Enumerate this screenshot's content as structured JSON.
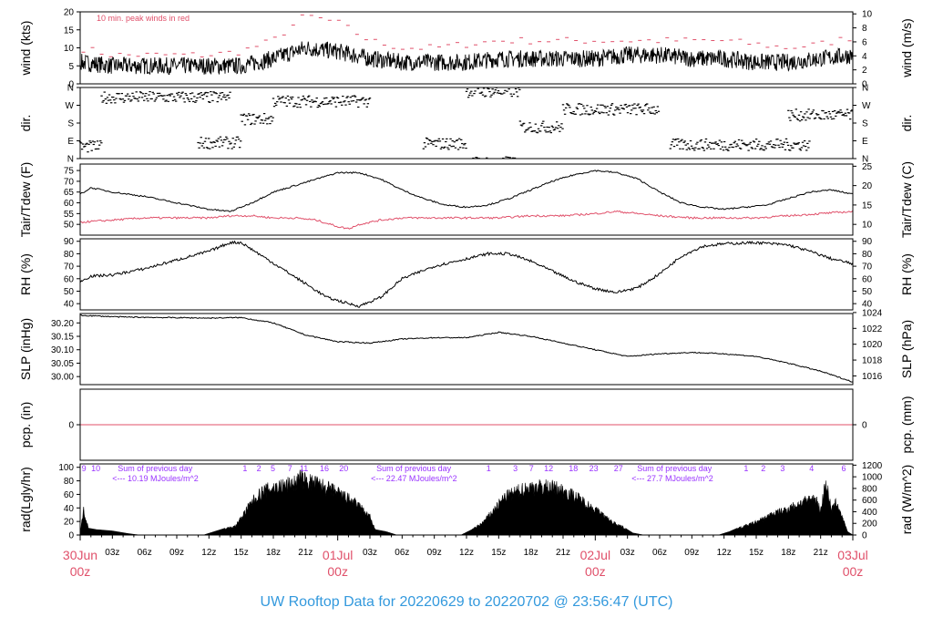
{
  "footer": "UW Rooftop Data for 20220629  to  20220702 @ 23:56:47  (UTC)",
  "colors": {
    "line": "#000000",
    "accent": "#e0506a",
    "purple": "#9933ff",
    "footer": "#3399dd"
  },
  "chart_data": [
    {
      "type": "line",
      "ylabel": "wind (kts)",
      "ylabel_right": "wind (m/s)",
      "ylim": [
        0,
        20
      ],
      "yticks": [
        0,
        5,
        10,
        15,
        20
      ],
      "yticks_right": [
        0,
        2,
        4,
        6,
        8,
        10
      ],
      "ylim_right": [
        0,
        10.29
      ],
      "annotation": "10 min. peak winds in red",
      "series": [
        {
          "kind": "mean_wind",
          "x_hours": [
            0,
            3,
            6,
            9,
            12,
            15,
            18,
            21,
            24,
            27,
            30,
            33,
            36,
            39,
            42,
            45,
            48,
            51,
            54,
            57,
            60,
            63,
            66,
            69,
            72
          ],
          "values": [
            6,
            5,
            5,
            5,
            5,
            5,
            7,
            10,
            9,
            7,
            6,
            6,
            6,
            7,
            7,
            7,
            7,
            8,
            8,
            7,
            7,
            6,
            6,
            7,
            8
          ]
        },
        {
          "kind": "peak_wind",
          "x_hours": [
            0,
            3,
            6,
            9,
            12,
            15,
            18,
            21,
            24,
            27,
            30,
            33,
            36,
            39,
            42,
            45,
            48,
            51,
            54,
            57,
            60,
            63,
            66,
            69,
            72
          ],
          "values": [
            10,
            8,
            8,
            8,
            8,
            9,
            12,
            19,
            17,
            12,
            10,
            10,
            11,
            12,
            12,
            12,
            12,
            12,
            12,
            12,
            12,
            11,
            10,
            11,
            13
          ]
        }
      ]
    },
    {
      "type": "scatter",
      "ylabel": "dir.",
      "ylabel_right": "dir.",
      "yticks": [
        "N",
        "E",
        "S",
        "W",
        "N"
      ],
      "ylim": [
        0,
        360
      ],
      "segments": [
        {
          "x_hours": [
            0,
            2
          ],
          "dir_deg": 60
        },
        {
          "x_hours": [
            2,
            14
          ],
          "dir_deg": 310
        },
        {
          "x_hours": [
            11,
            15
          ],
          "dir_deg": 80
        },
        {
          "x_hours": [
            15,
            18
          ],
          "dir_deg": 200
        },
        {
          "x_hours": [
            18,
            27
          ],
          "dir_deg": 290
        },
        {
          "x_hours": [
            32,
            36
          ],
          "dir_deg": 75
        },
        {
          "x_hours": [
            36,
            41
          ],
          "dir_deg": 340
        },
        {
          "x_hours": [
            41,
            45
          ],
          "dir_deg": 160
        },
        {
          "x_hours": [
            45,
            54
          ],
          "dir_deg": 250
        },
        {
          "x_hours": [
            55,
            68
          ],
          "dir_deg": 70
        },
        {
          "x_hours": [
            66,
            72
          ],
          "dir_deg": 220
        }
      ]
    },
    {
      "type": "line",
      "ylabel": "Tair/Tdew (F)",
      "ylabel_right": "Tair/Tdew (C)",
      "ylim": [
        45,
        78
      ],
      "yticks": [
        50,
        55,
        60,
        65,
        70,
        75
      ],
      "yticks_right": [
        10,
        15,
        20,
        25
      ],
      "series": [
        {
          "kind": "tair",
          "x_hours": [
            0,
            1,
            3,
            6,
            9,
            12,
            14,
            16,
            18,
            20,
            22,
            24,
            26,
            28,
            30,
            32,
            34,
            36,
            38,
            40,
            42,
            44,
            46,
            48,
            50,
            52,
            54,
            56,
            58,
            60,
            62,
            64,
            66,
            68,
            70,
            72
          ],
          "values": [
            64,
            67,
            65,
            63,
            60,
            57,
            56,
            60,
            65,
            68,
            71,
            74,
            74,
            71,
            66,
            62,
            59,
            58,
            59,
            62,
            66,
            70,
            73,
            75,
            74,
            71,
            65,
            60,
            58,
            57,
            58,
            59,
            62,
            65,
            66,
            64
          ]
        },
        {
          "kind": "tdew",
          "x_hours": [
            0,
            3,
            6,
            9,
            12,
            14,
            16,
            18,
            20,
            22,
            24,
            25,
            26,
            28,
            30,
            33,
            36,
            39,
            42,
            45,
            48,
            50,
            52,
            54,
            57,
            60,
            63,
            66,
            69,
            72
          ],
          "values": [
            51,
            52,
            53,
            53,
            53,
            54,
            54,
            53,
            53,
            52,
            49,
            48,
            50,
            52,
            53,
            53,
            53,
            53,
            54,
            54,
            55,
            56,
            55,
            54,
            53,
            53,
            53,
            54,
            55,
            56
          ]
        }
      ]
    },
    {
      "type": "line",
      "ylabel": "RH (%)",
      "ylabel_right": "RH (%)",
      "ylim": [
        35,
        92
      ],
      "yticks": [
        40,
        50,
        60,
        70,
        80,
        90
      ],
      "yticks_right": [
        40,
        50,
        60,
        70,
        80,
        90
      ],
      "series": [
        {
          "kind": "rh",
          "x_hours": [
            0,
            1,
            3,
            6,
            9,
            12,
            14,
            15,
            17,
            19,
            21,
            23,
            25,
            26,
            28,
            30,
            33,
            36,
            38,
            40,
            42,
            44,
            46,
            48,
            50,
            52,
            54,
            56,
            58,
            60,
            63,
            66,
            68,
            70,
            72
          ],
          "values": [
            58,
            62,
            63,
            68,
            75,
            82,
            89,
            89,
            78,
            67,
            56,
            45,
            40,
            38,
            45,
            60,
            70,
            76,
            80,
            80,
            74,
            66,
            58,
            52,
            49,
            53,
            64,
            78,
            86,
            88,
            89,
            87,
            82,
            76,
            72
          ]
        }
      ]
    },
    {
      "type": "line",
      "ylabel": "SLP (inHg)",
      "ylabel_right": "SLP (hPa)",
      "ylim": [
        29.97,
        30.235
      ],
      "yticks": [
        30.0,
        30.05,
        30.1,
        30.15,
        30.2
      ],
      "ytick_labels": [
        "30.00",
        "30.05",
        "30.10",
        "30.15",
        "30.20"
      ],
      "yticks_right": [
        1016,
        1018,
        1020,
        1022,
        1024
      ],
      "series": [
        {
          "kind": "slp",
          "x_hours": [
            0,
            4,
            8,
            12,
            15,
            18,
            21,
            24,
            27,
            30,
            33,
            36,
            39,
            42,
            45,
            48,
            51,
            54,
            57,
            60,
            63,
            66,
            69,
            72
          ],
          "values": [
            30.228,
            30.222,
            30.22,
            30.218,
            30.22,
            30.2,
            30.155,
            30.13,
            30.125,
            30.14,
            30.145,
            30.145,
            30.165,
            30.15,
            30.125,
            30.1,
            30.075,
            30.085,
            30.09,
            30.085,
            30.075,
            30.05,
            30.02,
            29.98
          ]
        }
      ]
    },
    {
      "type": "line",
      "ylabel": "pcp. (in)",
      "ylabel_right": "pcp. (mm)",
      "yticks": [
        0
      ],
      "yticks_right": [
        0
      ],
      "series": [
        {
          "kind": "pcp",
          "x_hours": [
            0,
            72
          ],
          "values": [
            0,
            0
          ]
        }
      ]
    },
    {
      "type": "area",
      "ylabel": "rad(Lgly/hr)",
      "ylabel_right": "rad (W/m^2)",
      "ylim": [
        0,
        105
      ],
      "yticks": [
        0,
        20,
        40,
        60,
        80,
        100
      ],
      "yticks_right": [
        0,
        200,
        400,
        600,
        800,
        1000,
        1200
      ],
      "series": [
        {
          "kind": "radiation",
          "x_hours": [
            0,
            0.3,
            0.8,
            1.5,
            3,
            4.5,
            5.5,
            11.5,
            12.5,
            13.5,
            14.5,
            16,
            17,
            18,
            19,
            20,
            20.5,
            21,
            22,
            23,
            24,
            25,
            26,
            27,
            27.5,
            28.5,
            29.5,
            35.5,
            36.5,
            37.5,
            38.5,
            39.5,
            40.5,
            41.5,
            42.5,
            43.5,
            44.5,
            45.5,
            46.5,
            47.5,
            48.5,
            49.5,
            50.5,
            51,
            51.5,
            52.5,
            53,
            53.5,
            59.5,
            60.5,
            61.5,
            62.5,
            63.5,
            64.5,
            65.5,
            66.5,
            67.5,
            68.5,
            69,
            69.5,
            70,
            70.5,
            71.5,
            72
          ],
          "values": [
            0,
            42,
            10,
            8,
            6,
            2,
            0,
            0,
            5,
            10,
            15,
            55,
            72,
            78,
            82,
            86,
            95,
            90,
            85,
            78,
            70,
            60,
            48,
            30,
            8,
            5,
            0,
            0,
            8,
            20,
            40,
            62,
            70,
            77,
            80,
            80,
            77,
            70,
            60,
            48,
            36,
            22,
            14,
            8,
            3,
            0,
            0,
            0,
            0,
            5,
            12,
            18,
            25,
            35,
            40,
            48,
            55,
            62,
            40,
            90,
            40,
            55,
            5,
            0
          ]
        }
      ],
      "counts_top": [
        "9",
        "10",
        "1",
        "2",
        "5",
        "7",
        "11",
        "16",
        "20",
        "1",
        "3",
        "7",
        "12",
        "18",
        "23",
        "27",
        "1",
        "2",
        "3",
        "4",
        "6"
      ],
      "sums": [
        {
          "title": "Sum of previous day",
          "value": "<--- 10.19 MJoules/m^2"
        },
        {
          "title": "Sum of previous day",
          "value": "<--- 22.47 MJoules/m^2"
        },
        {
          "title": "Sum of previous day",
          "value": "<--- 27.7 MJoules/m^2"
        }
      ]
    }
  ],
  "x_axis": {
    "range_hours": [
      0,
      72
    ],
    "hour_labels": [
      "03z",
      "06z",
      "09z",
      "12z",
      "15z",
      "18z",
      "21z",
      "03z",
      "06z",
      "09z",
      "12z",
      "15z",
      "18z",
      "21z",
      "03z",
      "06z",
      "09z",
      "12z",
      "15z",
      "18z",
      "21z"
    ],
    "hour_label_positions": [
      3,
      6,
      9,
      12,
      15,
      18,
      21,
      27,
      30,
      33,
      36,
      39,
      42,
      45,
      51,
      54,
      57,
      60,
      63,
      66,
      69
    ],
    "day_labels": [
      {
        "x_hours": 0,
        "date": "30Jun",
        "time": "00z"
      },
      {
        "x_hours": 24,
        "date": "01Jul",
        "time": "00z"
      },
      {
        "x_hours": 48,
        "date": "02Jul",
        "time": "00z"
      },
      {
        "x_hours": 72,
        "date": "03Jul",
        "time": "00z"
      }
    ]
  }
}
